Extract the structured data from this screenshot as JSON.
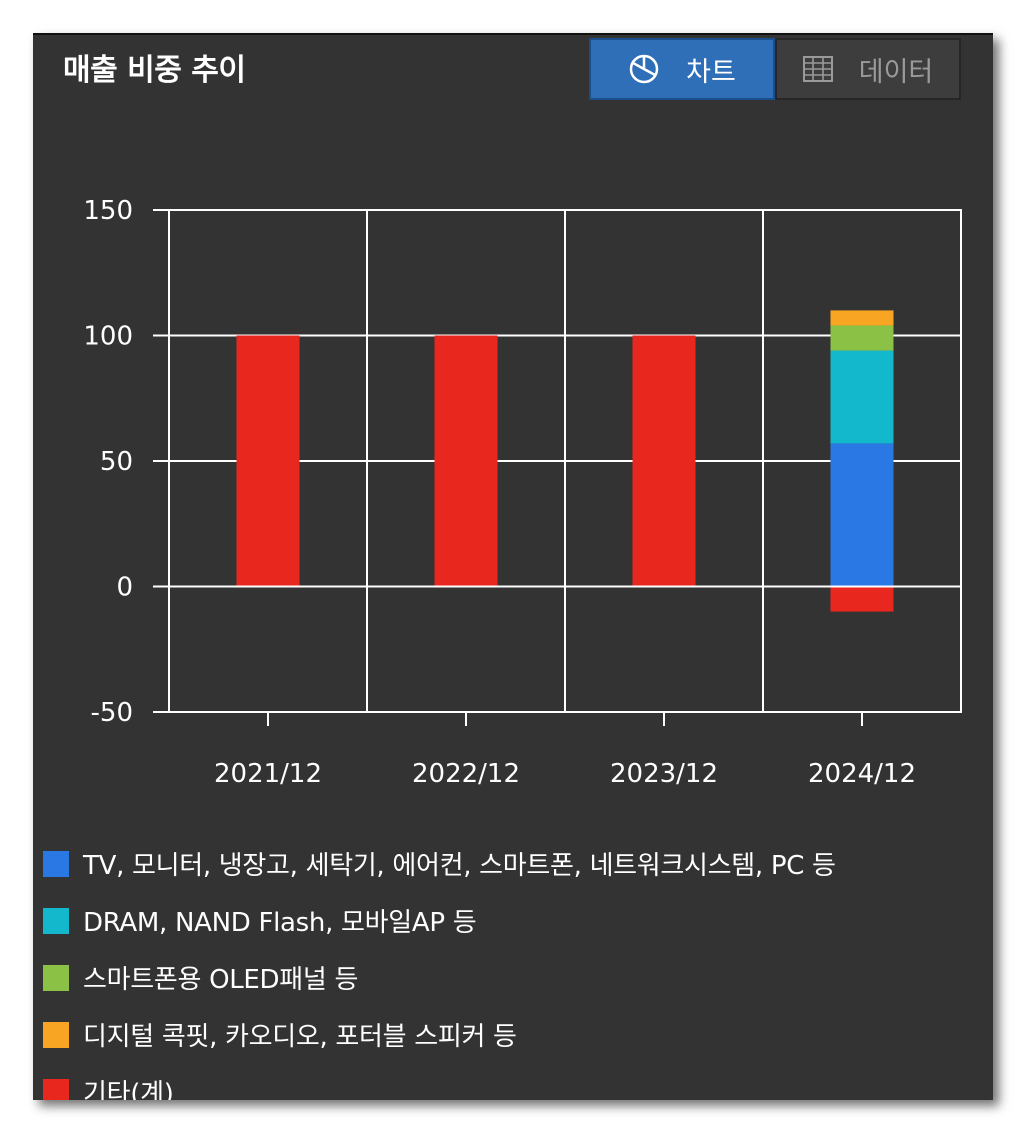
{
  "header": {
    "title": "매출 비중 추이"
  },
  "tabs": [
    {
      "label": "차트",
      "icon": "pie-chart-icon",
      "active": true
    },
    {
      "label": "데이터",
      "icon": "table-grid-icon",
      "active": false
    }
  ],
  "colors": {
    "background": "#333333",
    "grid": "#ffffff",
    "active_tab": "#2f6fb8"
  },
  "chart_data": {
    "type": "bar",
    "stacked": true,
    "title": "",
    "xlabel": "",
    "ylabel": "",
    "categories": [
      "2021/12",
      "2022/12",
      "2023/12",
      "2024/12"
    ],
    "ylim": [
      -50,
      150
    ],
    "yticks": [
      150,
      100,
      50,
      0,
      -50
    ],
    "grid": true,
    "legend_position": "bottom",
    "series": [
      {
        "name": "TV, 모니터, 냉장고, 세탁기, 에어컨, 스마트폰, 네트워크시스템, PC 등",
        "color": "#2a78e4",
        "values": [
          0,
          0,
          0,
          57
        ]
      },
      {
        "name": "DRAM, NAND Flash, 모바일AP 등",
        "color": "#14b8cc",
        "values": [
          0,
          0,
          0,
          37
        ]
      },
      {
        "name": "스마트폰용 OLED패널 등",
        "color": "#8bc145",
        "values": [
          0,
          0,
          0,
          10
        ]
      },
      {
        "name": "디지털 콕핏, 카오디오, 포터블 스피커 등",
        "color": "#f8a524",
        "values": [
          0,
          0,
          0,
          6
        ]
      },
      {
        "name": "기타(계)",
        "color": "#e8271f",
        "values": [
          100,
          100,
          100,
          -10
        ]
      }
    ]
  }
}
